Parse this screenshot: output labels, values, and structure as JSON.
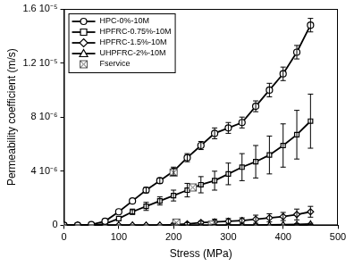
{
  "chart_data": {
    "type": "line",
    "x_label": "Stress (MPa)",
    "y_label": "Permeability coefficient (m/s)",
    "xlim": [
      0,
      500
    ],
    "xticks": [
      0,
      100,
      200,
      300,
      400,
      500
    ],
    "ylim": [
      0,
      1.6e-05
    ],
    "yticks": [
      0,
      {
        "value": 4e-06,
        "label": "4 10⁻⁶"
      },
      {
        "value": 8e-06,
        "label": "8 10⁻⁶"
      },
      {
        "value": 1.2e-05,
        "label": "1.2 10⁻⁵"
      },
      {
        "value": 1.6e-05,
        "label": "1.6 10⁻⁵"
      }
    ],
    "grid": false,
    "legend": "upper left",
    "x": [
      0,
      25,
      50,
      75,
      100,
      125,
      150,
      175,
      200,
      225,
      250,
      275,
      300,
      325,
      350,
      375,
      400,
      425,
      450
    ],
    "series": [
      {
        "name": "HPC-0%-10M",
        "color": "#000000",
        "marker": "circle",
        "line_style": "solid",
        "values": [
          0,
          0,
          5e-08,
          3e-07,
          1e-06,
          1.8e-06,
          2.6e-06,
          3.3e-06,
          4e-06,
          5e-06,
          5.9e-06,
          6.8e-06,
          7.2e-06,
          7.6e-06,
          8.8e-06,
          1e-05,
          1.12e-05,
          1.28e-05,
          1.48e-05
        ],
        "errors": [
          0,
          0,
          0,
          0,
          0,
          0,
          2e-07,
          2e-07,
          3e-07,
          3e-07,
          3e-07,
          4e-07,
          4e-07,
          4e-07,
          4e-07,
          5e-07,
          5e-07,
          5e-07,
          5e-07
        ]
      },
      {
        "name": "HPFRC-0.75%-10M",
        "color": "#000000",
        "marker": "square",
        "line_style": "solid",
        "values": [
          0,
          0,
          0,
          1e-07,
          5e-07,
          1e-06,
          1.4e-06,
          1.8e-06,
          2.2e-06,
          2.6e-06,
          3e-06,
          3.3e-06,
          3.8e-06,
          4.3e-06,
          4.7e-06,
          5.2e-06,
          5.9e-06,
          6.7e-06,
          7.7e-06
        ],
        "errors": [
          0,
          0,
          0,
          0,
          0,
          2e-07,
          3e-07,
          3e-07,
          4e-07,
          5e-07,
          6e-07,
          7e-07,
          8e-07,
          1e-06,
          1.2e-06,
          1.4e-06,
          1.6e-06,
          1.8e-06,
          2e-06
        ]
      },
      {
        "name": "HPFRC-1.5%-10M",
        "color": "#000000",
        "marker": "diamond",
        "line_style": "solid",
        "values": [
          0,
          0,
          0,
          0,
          0,
          0,
          0,
          0,
          5e-08,
          1e-07,
          2e-07,
          2.5e-07,
          3e-07,
          3.5e-07,
          4.5e-07,
          5.5e-07,
          6.5e-07,
          8e-07,
          1e-06
        ],
        "errors": [
          0,
          0,
          0,
          0,
          0,
          0,
          0,
          0,
          1e-07,
          1e-07,
          1e-07,
          2e-07,
          2e-07,
          2e-07,
          3e-07,
          3e-07,
          3e-07,
          4e-07,
          4e-07
        ]
      },
      {
        "name": "UHPFRC-2%-10M",
        "color": "#000000",
        "marker": "triangle",
        "line_style": "solid",
        "values": [
          0,
          0,
          0,
          0,
          0,
          0,
          0,
          0,
          0,
          0,
          0,
          0,
          1e-08,
          1e-08,
          2e-08,
          3e-08,
          5e-08,
          7e-08,
          1e-07
        ],
        "errors": [
          0,
          0,
          0,
          0,
          0,
          0,
          0,
          0,
          0,
          0,
          0,
          0,
          0,
          0,
          0,
          0,
          0,
          5e-08,
          5e-08
        ]
      },
      {
        "name": "Fservice",
        "color": "#555555",
        "marker": "boxed_cross",
        "line_style": "none",
        "x": [
          200,
          235,
          205,
          270
        ],
        "values": [
          3.9e-06,
          2.8e-06,
          2e-07,
          5e-08
        ]
      }
    ]
  }
}
